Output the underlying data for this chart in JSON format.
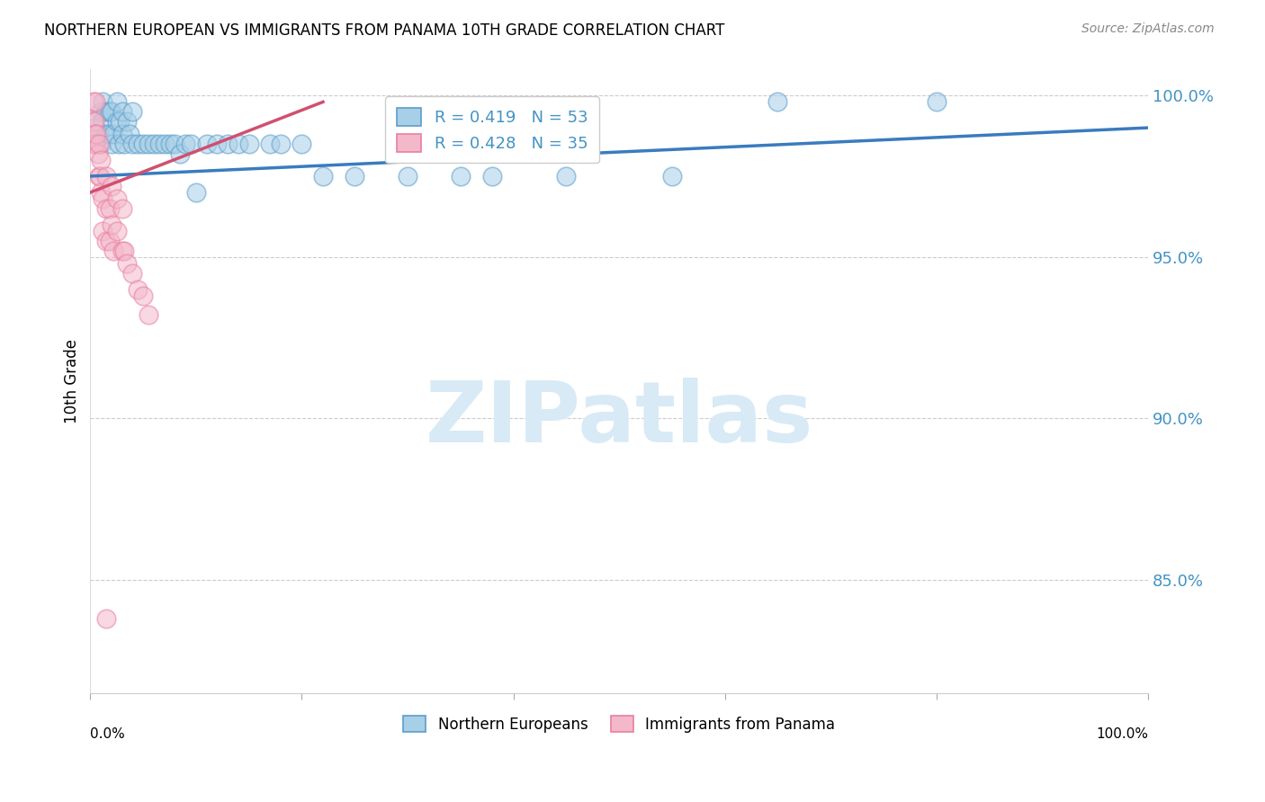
{
  "title": "NORTHERN EUROPEAN VS IMMIGRANTS FROM PANAMA 10TH GRADE CORRELATION CHART",
  "source": "Source: ZipAtlas.com",
  "ylabel": "10th Grade",
  "xmin": 0.0,
  "xmax": 1.0,
  "ymin": 0.815,
  "ymax": 1.008,
  "yticks": [
    0.85,
    0.9,
    0.95,
    1.0
  ],
  "ytick_labels": [
    "85.0%",
    "90.0%",
    "95.0%",
    "100.0%"
  ],
  "blue_color": "#a8cfe8",
  "pink_color": "#f4b8cb",
  "blue_edge_color": "#5b9dc9",
  "pink_edge_color": "#e87fa0",
  "blue_line_color": "#3a7bbf",
  "pink_line_color": "#d05070",
  "legend_text_color": "#4393c3",
  "axis_color": "#4393c3",
  "grid_color": "#cccccc",
  "watermark_color": "#d8eaf5",
  "blue_points_x": [
    0.005,
    0.008,
    0.01,
    0.01,
    0.012,
    0.012,
    0.015,
    0.015,
    0.018,
    0.018,
    0.02,
    0.02,
    0.022,
    0.025,
    0.025,
    0.027,
    0.028,
    0.03,
    0.03,
    0.032,
    0.035,
    0.037,
    0.04,
    0.04,
    0.045,
    0.05,
    0.055,
    0.06,
    0.065,
    0.07,
    0.075,
    0.08,
    0.085,
    0.09,
    0.095,
    0.1,
    0.11,
    0.12,
    0.13,
    0.14,
    0.15,
    0.17,
    0.18,
    0.2,
    0.22,
    0.25,
    0.3,
    0.35,
    0.38,
    0.45,
    0.55,
    0.65,
    0.8
  ],
  "blue_points_y": [
    0.99,
    0.988,
    0.995,
    0.985,
    0.998,
    0.992,
    0.995,
    0.988,
    0.995,
    0.988,
    0.995,
    0.985,
    0.988,
    0.998,
    0.992,
    0.985,
    0.992,
    0.995,
    0.988,
    0.985,
    0.992,
    0.988,
    0.995,
    0.985,
    0.985,
    0.985,
    0.985,
    0.985,
    0.985,
    0.985,
    0.985,
    0.985,
    0.982,
    0.985,
    0.985,
    0.97,
    0.985,
    0.985,
    0.985,
    0.985,
    0.985,
    0.985,
    0.985,
    0.985,
    0.975,
    0.975,
    0.975,
    0.975,
    0.975,
    0.975,
    0.975,
    0.998,
    0.998
  ],
  "pink_points_x": [
    0.003,
    0.003,
    0.003,
    0.004,
    0.004,
    0.005,
    0.005,
    0.006,
    0.007,
    0.008,
    0.008,
    0.009,
    0.01,
    0.01,
    0.012,
    0.012,
    0.015,
    0.015,
    0.015,
    0.018,
    0.018,
    0.02,
    0.02,
    0.022,
    0.025,
    0.025,
    0.03,
    0.03,
    0.032,
    0.035,
    0.04,
    0.045,
    0.05,
    0.055,
    0.015
  ],
  "pink_points_y": [
    0.998,
    0.992,
    0.985,
    0.992,
    0.988,
    0.998,
    0.985,
    0.988,
    0.982,
    0.985,
    0.975,
    0.975,
    0.98,
    0.97,
    0.968,
    0.958,
    0.975,
    0.965,
    0.955,
    0.965,
    0.955,
    0.972,
    0.96,
    0.952,
    0.968,
    0.958,
    0.965,
    0.952,
    0.952,
    0.948,
    0.945,
    0.94,
    0.938,
    0.932,
    0.838
  ],
  "blue_trend_x": [
    0.0,
    1.0
  ],
  "blue_trend_y": [
    0.975,
    0.99
  ],
  "pink_trend_x": [
    0.0,
    0.22
  ],
  "pink_trend_y": [
    0.97,
    0.998
  ],
  "legend_blue_label": "R = 0.419   N = 53",
  "legend_pink_label": "R = 0.428   N = 35"
}
